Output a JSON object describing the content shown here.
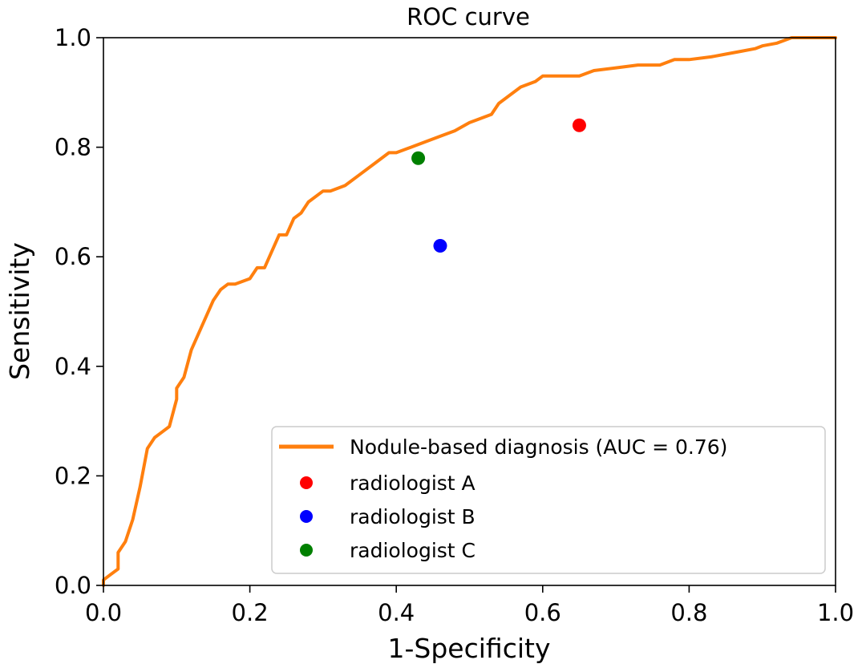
{
  "chart_data": {
    "type": "line",
    "title": "ROC curve",
    "xlabel": "1-Specificity",
    "ylabel": "Sensitivity",
    "xlim": [
      0.0,
      1.0
    ],
    "ylim": [
      0.0,
      1.0
    ],
    "grid": false,
    "x_ticks": [
      0.0,
      0.2,
      0.4,
      0.6,
      0.8,
      1.0
    ],
    "x_tick_labels": [
      "0.0",
      "0.2",
      "0.4",
      "0.6",
      "0.8",
      "1.0"
    ],
    "y_ticks": [
      0.0,
      0.2,
      0.4,
      0.6,
      0.8,
      1.0
    ],
    "y_tick_labels": [
      "0.0",
      "0.2",
      "0.4",
      "0.6",
      "0.8",
      "1.0"
    ],
    "legend_position": "lower-right",
    "series": [
      {
        "name": "Nodule-based diagnosis (AUC = 0.76)",
        "kind": "line",
        "color": "#ff7f0e",
        "x": [
          0.0,
          0.0,
          0.01,
          0.02,
          0.02,
          0.03,
          0.04,
          0.05,
          0.06,
          0.07,
          0.07,
          0.08,
          0.09,
          0.1,
          0.1,
          0.11,
          0.12,
          0.13,
          0.14,
          0.15,
          0.16,
          0.17,
          0.18,
          0.2,
          0.21,
          0.22,
          0.23,
          0.24,
          0.25,
          0.26,
          0.27,
          0.28,
          0.3,
          0.31,
          0.33,
          0.35,
          0.37,
          0.39,
          0.4,
          0.42,
          0.44,
          0.46,
          0.48,
          0.5,
          0.51,
          0.53,
          0.54,
          0.55,
          0.57,
          0.59,
          0.6,
          0.62,
          0.65,
          0.67,
          0.7,
          0.73,
          0.76,
          0.78,
          0.8,
          0.83,
          0.85,
          0.87,
          0.89,
          0.9,
          0.92,
          0.94,
          0.97,
          1.0
        ],
        "y": [
          0.0,
          0.01,
          0.02,
          0.03,
          0.06,
          0.08,
          0.12,
          0.18,
          0.25,
          0.27,
          0.27,
          0.28,
          0.29,
          0.34,
          0.36,
          0.38,
          0.43,
          0.46,
          0.49,
          0.52,
          0.54,
          0.55,
          0.55,
          0.56,
          0.58,
          0.58,
          0.61,
          0.64,
          0.64,
          0.67,
          0.68,
          0.7,
          0.72,
          0.72,
          0.73,
          0.75,
          0.77,
          0.79,
          0.79,
          0.8,
          0.81,
          0.82,
          0.83,
          0.845,
          0.85,
          0.86,
          0.88,
          0.89,
          0.91,
          0.92,
          0.93,
          0.93,
          0.93,
          0.94,
          0.945,
          0.95,
          0.95,
          0.96,
          0.96,
          0.965,
          0.97,
          0.975,
          0.98,
          0.985,
          0.99,
          1.0,
          1.0,
          1.0
        ]
      },
      {
        "name": "radiologist A",
        "kind": "point",
        "color": "#ff0000",
        "x": [
          0.65
        ],
        "y": [
          0.84
        ]
      },
      {
        "name": "radiologist B",
        "kind": "point",
        "color": "#0000ff",
        "x": [
          0.46
        ],
        "y": [
          0.62
        ]
      },
      {
        "name": "radiologist C",
        "kind": "point",
        "color": "#008000",
        "x": [
          0.43
        ],
        "y": [
          0.78
        ]
      }
    ]
  }
}
